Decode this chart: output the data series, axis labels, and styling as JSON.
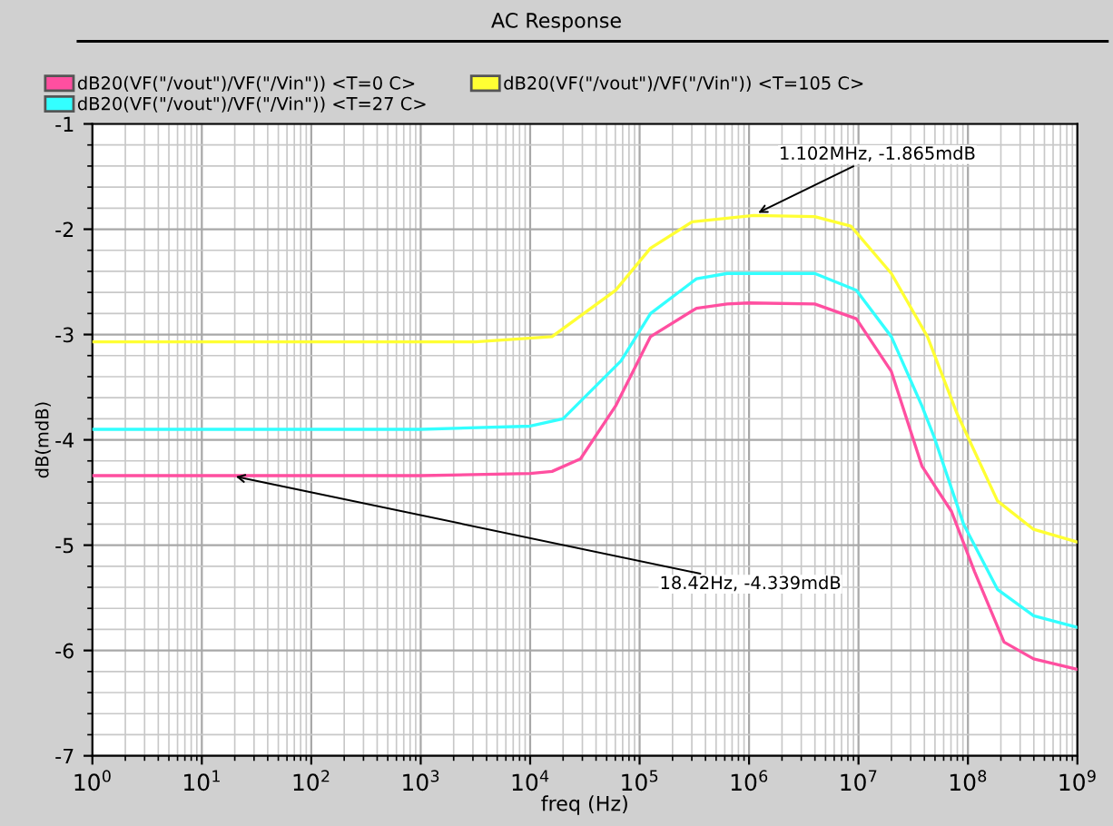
{
  "chart_data": {
    "type": "line",
    "title": "AC Response",
    "xlabel": "freq (Hz)",
    "ylabel": "dB(mdB)",
    "log": "x",
    "grid": true,
    "legend": "top",
    "marker": "none",
    "line_style": "solid",
    "xlim": [
      1,
      1000000000
    ],
    "ylim": [
      -7,
      -1
    ],
    "xticks": [
      {
        "value": 1,
        "label": "10$^{0}$"
      },
      {
        "value": 10,
        "label": "10$^{1}$"
      },
      {
        "value": 100,
        "label": "10$^{2}$"
      },
      {
        "value": 1000,
        "label": "10$^{3}$"
      },
      {
        "value": 10000,
        "label": "10$^{4}$"
      },
      {
        "value": 100000,
        "label": "10$^{5}$"
      },
      {
        "value": 1000000,
        "label": "10$^{6}$"
      },
      {
        "value": 10000000,
        "label": "10$^{7}$"
      },
      {
        "value": 100000000,
        "label": "10$^{8}$"
      },
      {
        "value": 1000000000,
        "label": "10$^{9}$"
      }
    ],
    "yticks": [
      -7,
      -6,
      -5,
      -4,
      -3,
      -2,
      -1
    ],
    "series": [
      {
        "name": "dB20(VF(\"/vout\")/VF(\"/Vin\")) <T=0 C>",
        "color": "#ff4fa0",
        "x": [
          1,
          18.42,
          1000,
          10000,
          15850,
          28840,
          60260,
          125900,
          331100,
          630900,
          1000000,
          3981000,
          9550000,
          19950000,
          38020000,
          70790000,
          114800000,
          213800000,
          398100000,
          1000000000
        ],
        "values": [
          -4.34,
          -4.34,
          -4.34,
          -4.32,
          -4.3,
          -4.18,
          -3.68,
          -3.02,
          -2.75,
          -2.71,
          -2.7,
          -2.71,
          -2.85,
          -3.35,
          -4.25,
          -4.68,
          -5.25,
          -5.92,
          -6.08,
          -6.18
        ]
      },
      {
        "name": "dB20(VF(\"/vout\")/VF(\"/Vin\")) <T=27 C>",
        "color": "#33ffff",
        "x": [
          1,
          1000,
          10000,
          19950,
          67610,
          125900,
          331100,
          630900,
          1000000,
          3981000,
          9550000,
          19950000,
          38020000,
          48980000,
          91200000,
          186200000,
          398100000,
          1000000000
        ],
        "values": [
          -3.9,
          -3.9,
          -3.87,
          -3.8,
          -3.25,
          -2.8,
          -2.47,
          -2.42,
          -2.42,
          -2.42,
          -2.58,
          -3.02,
          -3.68,
          -3.97,
          -4.8,
          -5.42,
          -5.67,
          -5.78
        ]
      },
      {
        "name": "dB20(VF(\"/vout\")/VF(\"/Vin\")) <T=105 C>",
        "color": "#ffff33",
        "x": [
          1,
          3162,
          15850,
          60260,
          125900,
          302000,
          1102000,
          3981000,
          8511000,
          19950000,
          42660000,
          79430000,
          186200000,
          398100000,
          1000000000
        ],
        "values": [
          -3.07,
          -3.07,
          -3.02,
          -2.58,
          -2.18,
          -1.93,
          -1.87,
          -1.88,
          -1.97,
          -2.42,
          -3.02,
          -3.75,
          -4.58,
          -4.85,
          -4.97
        ]
      }
    ],
    "annotations": [
      {
        "text": "18.42Hz, -4.339mdB",
        "x": 18.42,
        "y": -4.339
      },
      {
        "text": "1.102MHz, -1.865mdB",
        "x": 1102000,
        "y": -1.865
      }
    ]
  }
}
